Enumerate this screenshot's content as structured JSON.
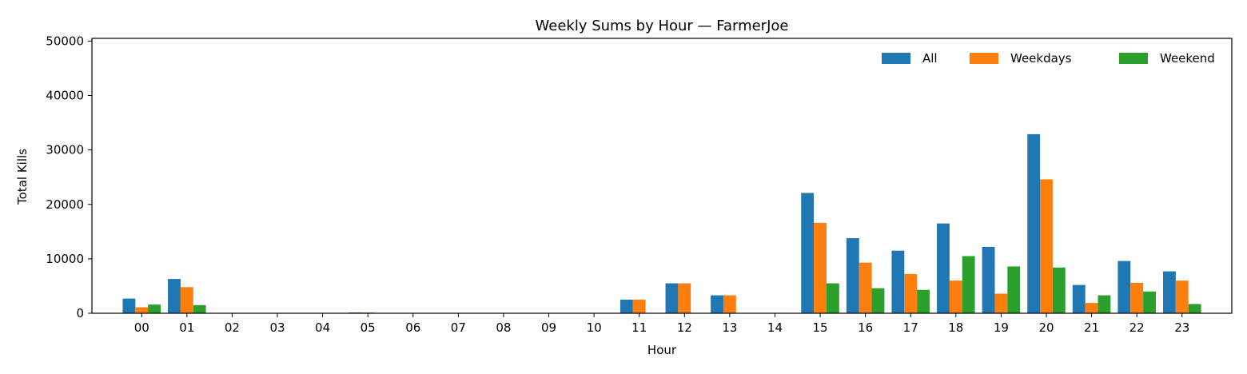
{
  "chart_data": {
    "type": "bar",
    "title": "Weekly Sums by Hour — FarmerJoe",
    "xlabel": "Hour",
    "ylabel": "Total Kills",
    "ylim": [
      0,
      50500
    ],
    "yticks": [
      0,
      10000,
      20000,
      30000,
      40000,
      50000
    ],
    "grid": false,
    "legend_position": "top-right",
    "categories": [
      "00",
      "01",
      "02",
      "03",
      "04",
      "05",
      "06",
      "07",
      "08",
      "09",
      "10",
      "11",
      "12",
      "13",
      "14",
      "15",
      "16",
      "17",
      "18",
      "19",
      "20",
      "21",
      "22",
      "23"
    ],
    "series": [
      {
        "name": "All",
        "color": "#1f77b4",
        "values": [
          2700,
          6300,
          0,
          0,
          0,
          150,
          0,
          0,
          0,
          0,
          0,
          2500,
          5500,
          3300,
          0,
          22100,
          13800,
          11500,
          16500,
          12200,
          32900,
          5200,
          9600,
          7700
        ]
      },
      {
        "name": "Weekdays",
        "color": "#ff7f0e",
        "values": [
          1100,
          4800,
          0,
          0,
          0,
          150,
          0,
          0,
          0,
          0,
          0,
          2500,
          5500,
          3300,
          0,
          16600,
          9300,
          7200,
          6000,
          3600,
          24600,
          1900,
          5600,
          6000
        ]
      },
      {
        "name": "Weekend",
        "color": "#2ca02c",
        "values": [
          1600,
          1500,
          0,
          0,
          0,
          0,
          0,
          0,
          0,
          0,
          0,
          0,
          0,
          0,
          0,
          5500,
          4600,
          4300,
          10500,
          8600,
          8400,
          3300,
          4000,
          1700
        ]
      }
    ]
  }
}
